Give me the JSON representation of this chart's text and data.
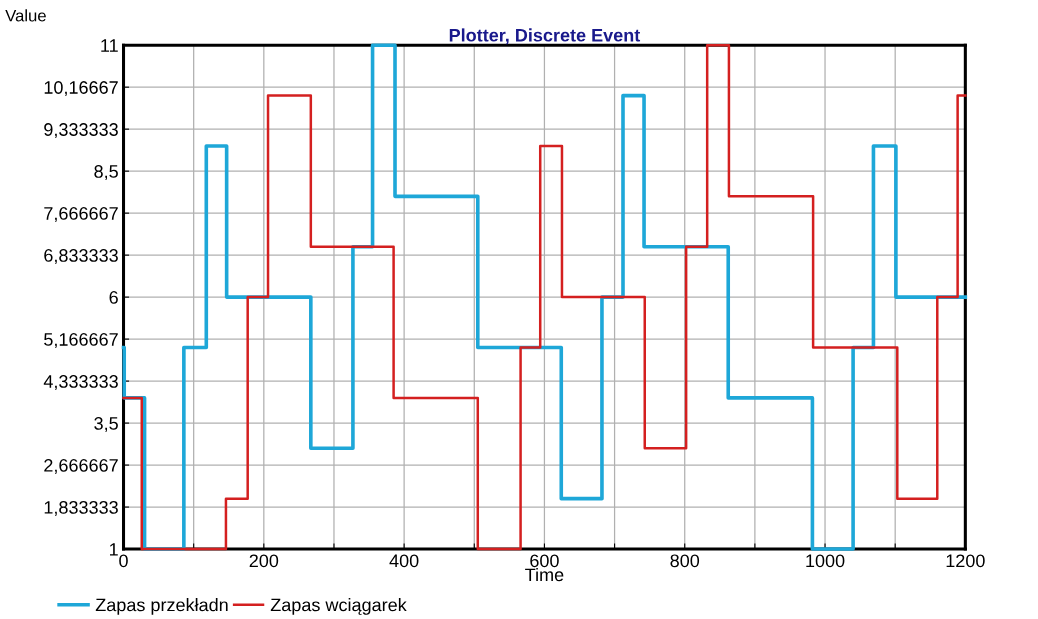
{
  "chart_data": {
    "type": "step",
    "title": "Plotter, Discrete Event",
    "xlabel": "Time",
    "ylabel": "Value",
    "xlim": [
      0,
      1200
    ],
    "xticks": [
      0,
      {
        "value": 100,
        "label": null
      },
      200,
      {
        "value": 300,
        "label": null
      },
      400,
      {
        "value": 500,
        "label": null
      },
      600,
      {
        "value": 700,
        "label": null
      },
      800,
      {
        "value": 900,
        "label": null
      },
      1000,
      {
        "value": 1100,
        "label": null
      },
      1200
    ],
    "ylim": [
      1,
      11
    ],
    "yticks": [
      1,
      {
        "value": 1.833333,
        "label": "1,833333"
      },
      {
        "value": 2.666667,
        "label": "2,666667"
      },
      {
        "value": 3.5,
        "label": "3,5"
      },
      {
        "value": 4.333333,
        "label": "4,333333"
      },
      {
        "value": 5.166667,
        "label": "5,166667"
      },
      6,
      {
        "value": 6.833333,
        "label": "6,833333"
      },
      {
        "value": 7.666667,
        "label": "7,666667"
      },
      {
        "value": 8.5,
        "label": "8,5"
      },
      {
        "value": 9.333333,
        "label": "9,333333"
      },
      {
        "value": 10.16667,
        "label": "10,16667"
      },
      11
    ],
    "grid": true,
    "legend": "bottom",
    "series": [
      {
        "name": "Zapas przekładn",
        "color": "#1ea7d8",
        "x": [
          0,
          1,
          30,
          86,
          118,
          147,
          267,
          327,
          355,
          387,
          505,
          624,
          682,
          712,
          742,
          862,
          982,
          1040,
          1069,
          1101,
          1200
        ],
        "values": [
          5,
          4,
          1,
          5,
          9,
          6,
          3,
          7,
          11,
          8,
          5,
          2,
          6,
          10,
          7,
          4,
          1,
          5,
          9,
          6,
          6
        ]
      },
      {
        "name": "Zapas wciągarek",
        "color": "#d42020",
        "x": [
          0,
          26,
          146,
          177,
          206,
          267,
          385,
          505,
          566,
          594,
          625,
          743,
          802,
          832,
          863,
          983,
          1103,
          1160,
          1189,
          1200
        ],
        "values": [
          4,
          1,
          2,
          6,
          10,
          7,
          4,
          1,
          5,
          9,
          6,
          3,
          7,
          11,
          8,
          5,
          2,
          6,
          10,
          10
        ]
      }
    ]
  }
}
